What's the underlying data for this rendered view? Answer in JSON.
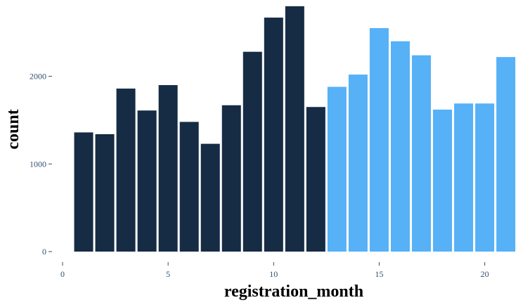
{
  "chart_data": {
    "type": "bar",
    "title": "",
    "xlabel": "registration_month",
    "ylabel": "count",
    "x": [
      1,
      2,
      3,
      4,
      5,
      6,
      7,
      8,
      9,
      10,
      11,
      12,
      13,
      14,
      15,
      16,
      17,
      18,
      19,
      20,
      21
    ],
    "values": [
      1360,
      1340,
      1860,
      1610,
      1900,
      1480,
      1230,
      1670,
      2280,
      2670,
      2800,
      1650,
      1880,
      2020,
      2550,
      2400,
      2240,
      1620,
      1690,
      1690,
      2220
    ],
    "series_colors": [
      "#162b44",
      "#162b44",
      "#162b44",
      "#162b44",
      "#162b44",
      "#162b44",
      "#162b44",
      "#162b44",
      "#162b44",
      "#162b44",
      "#162b44",
      "#162b44",
      "#56b1f7",
      "#56b1f7",
      "#56b1f7",
      "#56b1f7",
      "#56b1f7",
      "#56b1f7",
      "#56b1f7",
      "#56b1f7",
      "#56b1f7"
    ],
    "xlim": [
      0,
      21.5
    ],
    "ylim": [
      0,
      2800
    ],
    "x_ticks": [
      0,
      5,
      10,
      15,
      20
    ],
    "y_ticks": [
      0,
      1000,
      2000
    ],
    "grid": false,
    "legend": "none"
  }
}
